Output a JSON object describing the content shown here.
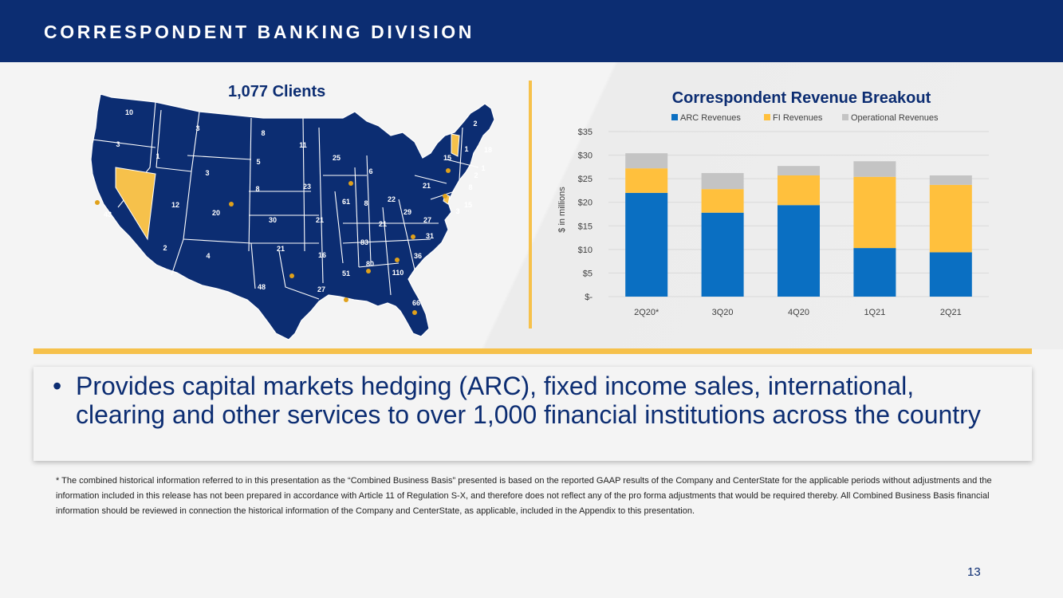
{
  "header": {
    "title": "CORRESPONDENT BANKING DIVISION"
  },
  "map": {
    "title": "1,077 Clients",
    "colors": {
      "state": "#0c2d72",
      "highlight": "#f6c14b",
      "marker": "#e0a11b",
      "border": "#ffffff"
    },
    "labels": [
      "10",
      "3",
      "8",
      "3",
      "1",
      "11",
      "2",
      "1",
      "18",
      "5",
      "25",
      "15",
      "6",
      "3",
      "1",
      "2",
      "8",
      "23",
      "21",
      "8",
      "12",
      "20",
      "61",
      "8",
      "22",
      "29",
      "15",
      "3",
      "43",
      "30",
      "21",
      "21",
      "27",
      "31",
      "83",
      "2",
      "4",
      "21",
      "16",
      "36",
      "80",
      "51",
      "110",
      "48",
      "27",
      "66"
    ]
  },
  "chart_data": {
    "type": "bar",
    "stacked": true,
    "title": "Correspondent Revenue Breakout",
    "ylabel": "$ in millions",
    "categories": [
      "2Q20*",
      "3Q20",
      "4Q20",
      "1Q21",
      "2Q21"
    ],
    "yticks": [
      "$-",
      "$5",
      "$10",
      "$15",
      "$20",
      "$25",
      "$30",
      "$35"
    ],
    "ylim": [
      0,
      35
    ],
    "grid": true,
    "legend": "top",
    "series": [
      {
        "name": "ARC Revenues",
        "color": "#0a6fc2",
        "values": [
          22.0,
          17.8,
          19.4,
          10.3,
          9.4
        ]
      },
      {
        "name": "FI Revenues",
        "color": "#ffc03d",
        "values": [
          5.2,
          5.0,
          6.3,
          15.1,
          14.3
        ]
      },
      {
        "name": "Operational Revenues",
        "color": "#c4c4c4",
        "values": [
          3.2,
          3.4,
          2.0,
          3.3,
          2.0
        ]
      }
    ]
  },
  "bullet": {
    "marker": "•",
    "text": "Provides capital markets hedging (ARC), fixed income sales, international, clearing and other services to over 1,000 financial institutions across the country"
  },
  "footnote": "*    The combined historical information referred to in this presentation as the “Combined Business Basis” presented is based on the reported GAAP results of the Company and CenterState for the applicable periods without adjustments and the information included in this release has not been prepared in accordance with Article 11 of Regulation S-X, and therefore does not reflect any of the pro forma adjustments that would be required thereby.  All Combined Business Basis financial information should be reviewed in connection the historical information of the Company and CenterState, as applicable, included in the Appendix to this presentation.",
  "page_number": "13"
}
